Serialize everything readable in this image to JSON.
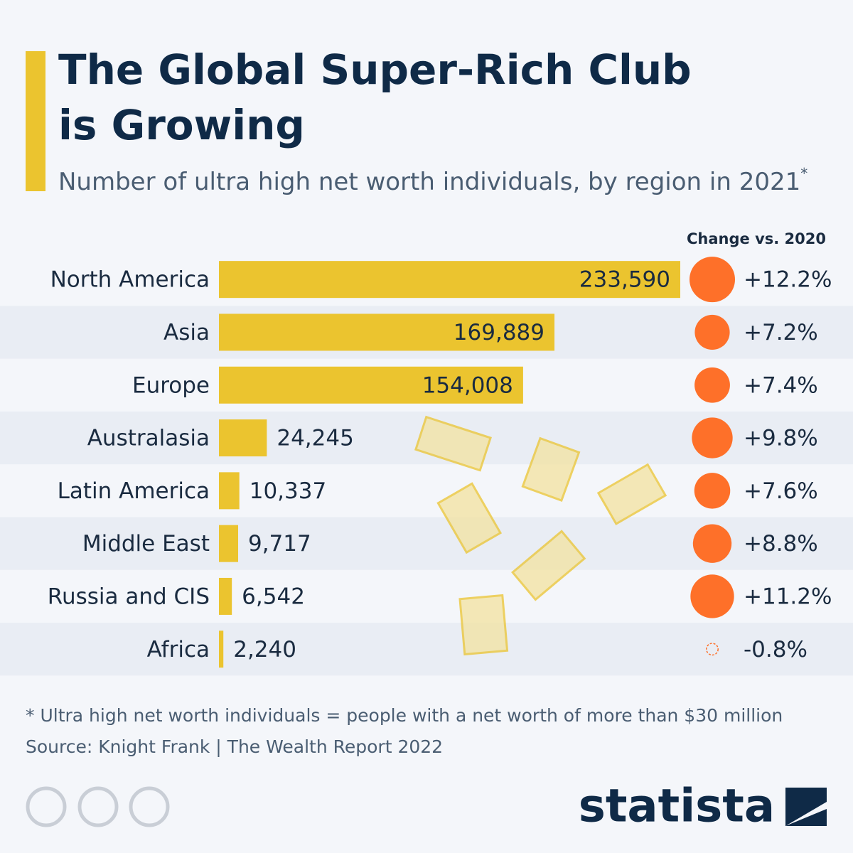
{
  "chart_data": {
    "type": "bar",
    "title_lines": [
      "The Global Super-Rich Club",
      "is Growing"
    ],
    "subtitle": "Number of ultra high net worth individuals, by region in 2021",
    "subtitle_mark": "*",
    "categories": [
      "North America",
      "Asia",
      "Europe",
      "Australasia",
      "Latin America",
      "Middle East",
      "Russia and CIS",
      "Africa"
    ],
    "values": [
      233590,
      169889,
      154008,
      24245,
      10337,
      9717,
      6542,
      2240
    ],
    "value_labels": [
      "233,590",
      "169,889",
      "154,008",
      "24,245",
      "10,337",
      "9,717",
      "6,542",
      "2,240"
    ],
    "color": "#ebc42f",
    "change": {
      "title": "Change vs. 2020",
      "color": "#fe7029",
      "values": [
        12.2,
        7.2,
        7.4,
        9.8,
        7.6,
        8.8,
        11.2,
        -0.8
      ],
      "value_labels": [
        "+12.2%",
        "+7.2%",
        "+7.4%",
        "+9.8%",
        "+7.6%",
        "+8.8%",
        "+11.2%",
        "-0.8%"
      ]
    },
    "footnote": "* Ultra high net worth individuals = people with a net worth of more than $30 million",
    "source": "Source: Knight Frank | The Wealth Report 2022",
    "brand": "statista"
  }
}
